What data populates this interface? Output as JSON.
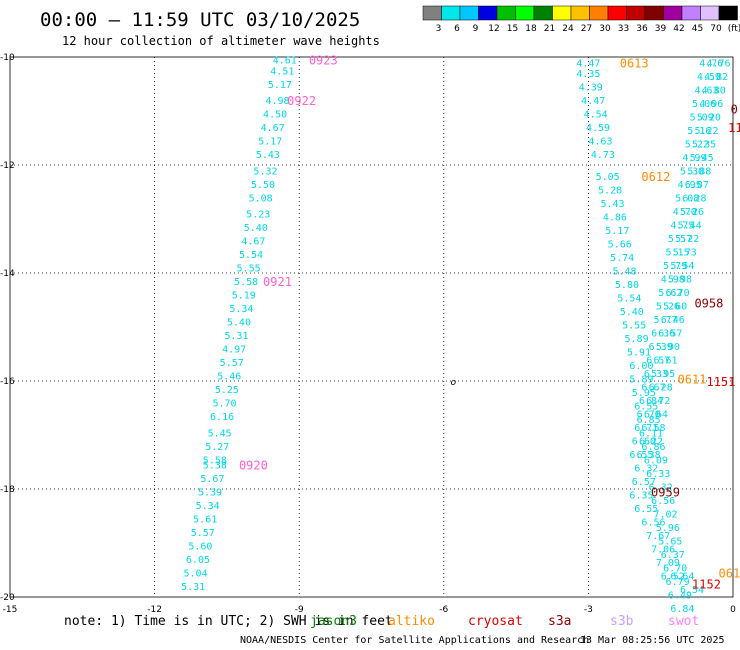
{
  "title": "00:00 – 11:59 UTC 03/10/2025",
  "subtitle": "12 hour collection of altimeter wave heights",
  "colorbar": {
    "colors": [
      "#808080",
      "#00e8e8",
      "#00c8ff",
      "#0000e0",
      "#00c000",
      "#00ff00",
      "#008000",
      "#ffff00",
      "#ffc000",
      "#ff8000",
      "#ff0000",
      "#c00000",
      "#800000",
      "#a000a0",
      "#c080ff",
      "#e0c0ff",
      "#000000"
    ],
    "labels": [
      "3",
      "6",
      "9",
      "12",
      "15",
      "18",
      "21",
      "24",
      "27",
      "30",
      "33",
      "36",
      "39",
      "42",
      "45",
      "70",
      "(ft)"
    ]
  },
  "note": "note: 1) Time is in UTC; 2) SWH is in feet",
  "legend": [
    {
      "name": "jason3",
      "color": "#008000"
    },
    {
      "name": "altiko",
      "color": "#ff8c00"
    },
    {
      "name": "cryosat",
      "color": "#e00000"
    },
    {
      "name": "s3a",
      "color": "#8b0000"
    },
    {
      "name": "s3b",
      "color": "#c8a0ff"
    },
    {
      "name": "swot",
      "color": "#ff80ff"
    }
  ],
  "credit": "NOAA/NESDIS Center for Satellite Applications and Research",
  "generated": "13 Mar 08:25:56 UTC 2025",
  "chart_data": {
    "type": "scatter",
    "xlim": [
      -15,
      0
    ],
    "ylim": [
      -20,
      -10
    ],
    "xticks": [
      -15,
      -12,
      -9,
      -6,
      -3,
      0
    ],
    "yticks": [
      -10,
      -12,
      -14,
      -16,
      -18,
      -20
    ],
    "grid": true,
    "center_marker": {
      "x": -5.8,
      "y": -16.0,
      "label": "o"
    },
    "tracks": [
      {
        "satellite": "swot",
        "color": "#ff80ff",
        "label_color": "#ff60d0",
        "points": [
          {
            "x": -9.3,
            "y": -10.05,
            "v": "4.61"
          },
          {
            "x": -9.35,
            "y": -10.25,
            "v": "4.51"
          },
          {
            "x": -9.4,
            "y": -10.5,
            "v": "5.17"
          },
          {
            "x": -9.45,
            "y": -10.8,
            "v": "4.98"
          },
          {
            "x": -9.5,
            "y": -11.05,
            "v": "4.50"
          },
          {
            "x": -9.55,
            "y": -11.3,
            "v": "4.67"
          },
          {
            "x": -9.6,
            "y": -11.55,
            "v": "5.17"
          },
          {
            "x": -9.65,
            "y": -11.8,
            "v": "5.43"
          },
          {
            "x": -9.7,
            "y": -12.1,
            "v": "5.32"
          },
          {
            "x": -9.75,
            "y": -12.35,
            "v": "5.50"
          },
          {
            "x": -9.8,
            "y": -12.6,
            "v": "5.08"
          },
          {
            "x": -9.85,
            "y": -12.9,
            "v": "5.23"
          },
          {
            "x": -9.9,
            "y": -13.15,
            "v": "5.40"
          },
          {
            "x": -9.95,
            "y": -13.4,
            "v": "4.67"
          },
          {
            "x": -10.0,
            "y": -13.65,
            "v": "5.54"
          },
          {
            "x": -10.05,
            "y": -13.9,
            "v": "5.55"
          },
          {
            "x": -10.1,
            "y": -14.15,
            "v": "5.58"
          },
          {
            "x": -10.15,
            "y": -14.4,
            "v": "5.19"
          },
          {
            "x": -10.2,
            "y": -14.65,
            "v": "5.34"
          },
          {
            "x": -10.25,
            "y": -14.9,
            "v": "5.40"
          },
          {
            "x": -10.3,
            "y": -15.15,
            "v": "5.31"
          },
          {
            "x": -10.35,
            "y": -15.4,
            "v": "4.97"
          },
          {
            "x": -10.4,
            "y": -15.65,
            "v": "5.57"
          },
          {
            "x": -10.45,
            "y": -15.9,
            "v": "5.46"
          },
          {
            "x": -10.5,
            "y": -16.15,
            "v": "5.25"
          },
          {
            "x": -10.55,
            "y": -16.4,
            "v": "5.70"
          },
          {
            "x": -10.6,
            "y": -16.65,
            "v": "6.16"
          },
          {
            "x": -10.65,
            "y": -16.95,
            "v": "5.45"
          },
          {
            "x": -10.7,
            "y": -17.2,
            "v": "5.27"
          },
          {
            "x": -10.75,
            "y": -17.45,
            "v": "5.58"
          },
          {
            "x": -10.75,
            "y": -17.55,
            "v": "5.38"
          },
          {
            "x": -10.8,
            "y": -17.8,
            "v": "5.67"
          },
          {
            "x": -10.85,
            "y": -18.05,
            "v": "5.39"
          },
          {
            "x": -10.9,
            "y": -18.3,
            "v": "5.34"
          },
          {
            "x": -10.95,
            "y": -18.55,
            "v": "5.61"
          },
          {
            "x": -11.0,
            "y": -18.8,
            "v": "5.57"
          },
          {
            "x": -11.05,
            "y": -19.05,
            "v": "5.60"
          },
          {
            "x": -11.1,
            "y": -19.3,
            "v": "6.05"
          },
          {
            "x": -11.15,
            "y": -19.55,
            "v": "5.04"
          },
          {
            "x": -11.2,
            "y": -19.8,
            "v": "5.31"
          }
        ],
        "times": [
          {
            "x": -8.8,
            "y": -10.05,
            "label": "0923"
          },
          {
            "x": -9.25,
            "y": -10.8,
            "label": "0922"
          },
          {
            "x": -9.75,
            "y": -14.15,
            "label": "0921"
          },
          {
            "x": -10.25,
            "y": -17.55,
            "label": "0920"
          }
        ]
      },
      {
        "satellite": "altiko",
        "color": "#00d8e8",
        "label_color": "#ff8c00",
        "points": [
          {
            "x": -3.0,
            "y": -10.1,
            "v": "4.47"
          },
          {
            "x": -3.0,
            "y": -10.3,
            "v": "4.35"
          },
          {
            "x": -2.95,
            "y": -10.55,
            "v": "4.39"
          },
          {
            "x": -2.9,
            "y": -10.8,
            "v": "4.47"
          },
          {
            "x": -2.85,
            "y": -11.05,
            "v": "4.54"
          },
          {
            "x": -2.8,
            "y": -11.3,
            "v": "4.59"
          },
          {
            "x": -2.75,
            "y": -11.55,
            "v": "4.63"
          },
          {
            "x": -2.7,
            "y": -11.8,
            "v": "4.73"
          },
          {
            "x": -2.6,
            "y": -12.2,
            "v": "5.05"
          },
          {
            "x": -2.55,
            "y": -12.45,
            "v": "5.28"
          },
          {
            "x": -2.5,
            "y": -12.7,
            "v": "5.43"
          },
          {
            "x": -2.45,
            "y": -12.95,
            "v": "4.86"
          },
          {
            "x": -2.4,
            "y": -13.2,
            "v": "5.17"
          },
          {
            "x": -2.35,
            "y": -13.45,
            "v": "5.66"
          },
          {
            "x": -2.3,
            "y": -13.7,
            "v": "5.74"
          },
          {
            "x": -2.25,
            "y": -13.95,
            "v": "5.48"
          },
          {
            "x": -2.2,
            "y": -14.2,
            "v": "5.80"
          },
          {
            "x": -2.15,
            "y": -14.45,
            "v": "5.54"
          },
          {
            "x": -2.1,
            "y": -14.7,
            "v": "5.40"
          },
          {
            "x": -2.05,
            "y": -14.95,
            "v": "5.55"
          },
          {
            "x": -2.0,
            "y": -15.2,
            "v": "5.89"
          },
          {
            "x": -1.95,
            "y": -15.45,
            "v": "5.91"
          },
          {
            "x": -1.9,
            "y": -15.7,
            "v": "6.00"
          },
          {
            "x": -1.9,
            "y": -15.95,
            "v": "5.89"
          },
          {
            "x": -1.85,
            "y": -16.2,
            "v": "5.95"
          },
          {
            "x": -1.8,
            "y": -16.45,
            "v": "6.55"
          },
          {
            "x": -1.75,
            "y": -16.7,
            "v": "6.85"
          },
          {
            "x": -1.7,
            "y": -16.95,
            "v": "6.11"
          },
          {
            "x": -1.65,
            "y": -17.2,
            "v": "6.86"
          },
          {
            "x": -1.6,
            "y": -17.45,
            "v": "6.09"
          },
          {
            "x": -1.55,
            "y": -17.7,
            "v": "6.33"
          },
          {
            "x": -1.5,
            "y": -17.95,
            "v": "6.32"
          },
          {
            "x": -1.45,
            "y": -18.2,
            "v": "6.56"
          },
          {
            "x": -1.4,
            "y": -18.45,
            "v": "7.02"
          },
          {
            "x": -1.35,
            "y": -18.7,
            "v": "5.96"
          },
          {
            "x": -1.3,
            "y": -18.95,
            "v": "5.65"
          },
          {
            "x": -1.25,
            "y": -19.2,
            "v": "6.37"
          },
          {
            "x": -1.2,
            "y": -19.45,
            "v": "6.70"
          },
          {
            "x": -1.15,
            "y": -19.7,
            "v": "6.79"
          },
          {
            "x": -1.1,
            "y": -19.95,
            "v": "6.49"
          },
          {
            "x": -1.05,
            "y": -20.2,
            "v": "6.84"
          }
        ],
        "times": [
          {
            "x": -2.35,
            "y": -10.1,
            "label": "0613"
          },
          {
            "x": -1.9,
            "y": -12.2,
            "label": "0612"
          },
          {
            "x": -1.15,
            "y": -15.95,
            "label": "0611"
          },
          {
            "x": -0.3,
            "y": -19.55,
            "label": "061"
          }
        ]
      },
      {
        "satellite": "s3a",
        "color": "#00d8e8",
        "label_color": "#8b0000",
        "points": [
          {
            "x": -0.45,
            "y": -10.1,
            "v": "4.76"
          },
          {
            "x": -0.5,
            "y": -10.35,
            "v": "4.59"
          },
          {
            "x": -0.55,
            "y": -10.6,
            "v": "4.63"
          },
          {
            "x": -0.6,
            "y": -10.85,
            "v": "5.06"
          },
          {
            "x": -0.65,
            "y": -11.1,
            "v": "5.09"
          },
          {
            "x": -0.7,
            "y": -11.35,
            "v": "5.16"
          },
          {
            "x": -0.75,
            "y": -11.6,
            "v": "5.22"
          },
          {
            "x": -0.8,
            "y": -11.85,
            "v": "4.99"
          },
          {
            "x": -0.85,
            "y": -12.1,
            "v": "5.30"
          },
          {
            "x": -0.9,
            "y": -12.35,
            "v": "4.95"
          },
          {
            "x": -0.95,
            "y": -12.6,
            "v": "5.08"
          },
          {
            "x": -1.0,
            "y": -12.85,
            "v": "4.70"
          },
          {
            "x": -1.05,
            "y": -13.1,
            "v": "4.75"
          },
          {
            "x": -1.1,
            "y": -13.35,
            "v": "5.57"
          },
          {
            "x": -1.15,
            "y": -13.6,
            "v": "5.15"
          },
          {
            "x": -1.2,
            "y": -13.85,
            "v": "5.79"
          },
          {
            "x": -1.25,
            "y": -14.1,
            "v": "4.98"
          },
          {
            "x": -1.3,
            "y": -14.35,
            "v": "5.62"
          },
          {
            "x": -1.35,
            "y": -14.6,
            "v": "5.26"
          },
          {
            "x": -1.4,
            "y": -14.85,
            "v": "5.77"
          },
          {
            "x": -1.45,
            "y": -15.1,
            "v": "6.36"
          },
          {
            "x": -1.5,
            "y": -15.35,
            "v": "6.39"
          },
          {
            "x": -1.55,
            "y": -15.6,
            "v": "6.57"
          },
          {
            "x": -1.6,
            "y": -15.85,
            "v": "6.33"
          },
          {
            "x": -1.65,
            "y": -16.1,
            "v": "6.67"
          },
          {
            "x": -1.7,
            "y": -16.35,
            "v": "6.84"
          },
          {
            "x": -1.75,
            "y": -16.6,
            "v": "6.70"
          },
          {
            "x": -1.8,
            "y": -16.85,
            "v": "6.71"
          },
          {
            "x": -1.85,
            "y": -17.1,
            "v": "6.60"
          },
          {
            "x": -1.9,
            "y": -17.35,
            "v": "6.55"
          }
        ],
        "times": [
          {
            "x": -0.05,
            "y": -10.95,
            "label": "0"
          },
          {
            "x": -0.8,
            "y": -14.55,
            "label": "0958"
          },
          {
            "x": -1.7,
            "y": -18.05,
            "label": "0959"
          }
        ]
      },
      {
        "satellite": "cryosat",
        "color": "#00d8e8",
        "label_color": "#e00000",
        "points": [
          {
            "x": -0.3,
            "y": -10.1,
            "v": "4.76"
          },
          {
            "x": -0.35,
            "y": -10.35,
            "v": "4.82"
          },
          {
            "x": -0.4,
            "y": -10.6,
            "v": "4.80"
          },
          {
            "x": -0.45,
            "y": -10.85,
            "v": "4.96"
          },
          {
            "x": -0.5,
            "y": -11.1,
            "v": "5.20"
          },
          {
            "x": -0.55,
            "y": -11.35,
            "v": "5.22"
          },
          {
            "x": -0.6,
            "y": -11.6,
            "v": "5.35"
          },
          {
            "x": -0.65,
            "y": -11.85,
            "v": "5.45"
          },
          {
            "x": -0.7,
            "y": -12.1,
            "v": "5.88"
          },
          {
            "x": -0.75,
            "y": -12.35,
            "v": "6.07"
          },
          {
            "x": -0.8,
            "y": -12.6,
            "v": "6.28"
          },
          {
            "x": -0.85,
            "y": -12.85,
            "v": "5.26"
          },
          {
            "x": -0.9,
            "y": -13.1,
            "v": "5.44"
          },
          {
            "x": -0.95,
            "y": -13.35,
            "v": "5.22"
          },
          {
            "x": -1.0,
            "y": -13.6,
            "v": "5.73"
          },
          {
            "x": -1.05,
            "y": -13.85,
            "v": "5.54"
          },
          {
            "x": -1.1,
            "y": -14.1,
            "v": "5.98"
          },
          {
            "x": -1.15,
            "y": -14.35,
            "v": "6.70"
          },
          {
            "x": -1.2,
            "y": -14.6,
            "v": "5.60"
          },
          {
            "x": -1.25,
            "y": -14.85,
            "v": "6.46"
          },
          {
            "x": -1.3,
            "y": -15.1,
            "v": "6.57"
          },
          {
            "x": -1.35,
            "y": -15.35,
            "v": "5.90"
          },
          {
            "x": -1.4,
            "y": -15.6,
            "v": "6.61"
          },
          {
            "x": -1.45,
            "y": -15.85,
            "v": "5.95"
          },
          {
            "x": -1.5,
            "y": -16.1,
            "v": "6.28"
          },
          {
            "x": -1.55,
            "y": -16.35,
            "v": "6.72"
          },
          {
            "x": -1.6,
            "y": -16.6,
            "v": "6.64"
          },
          {
            "x": -1.65,
            "y": -16.85,
            "v": "6.58"
          },
          {
            "x": -1.7,
            "y": -17.1,
            "v": "6.22"
          },
          {
            "x": -1.75,
            "y": -17.35,
            "v": "6.38"
          },
          {
            "x": -1.8,
            "y": -17.6,
            "v": "6.32"
          },
          {
            "x": -1.85,
            "y": -17.85,
            "v": "6.57"
          },
          {
            "x": -1.9,
            "y": -18.1,
            "v": "6.35"
          },
          {
            "x": -1.8,
            "y": -18.35,
            "v": "6.55"
          },
          {
            "x": -1.65,
            "y": -18.6,
            "v": "6.56"
          },
          {
            "x": -1.55,
            "y": -18.85,
            "v": "7.67"
          },
          {
            "x": -1.45,
            "y": -19.1,
            "v": "7.06"
          },
          {
            "x": -1.35,
            "y": -19.35,
            "v": "7.09"
          },
          {
            "x": -1.25,
            "y": -19.6,
            "v": "6.52"
          },
          {
            "x": -1.05,
            "y": -19.6,
            "v": "6.64"
          },
          {
            "x": -0.85,
            "y": -19.85,
            "v": "6.54"
          }
        ],
        "times": [
          {
            "x": -0.1,
            "y": -11.3,
            "label": "11"
          },
          {
            "x": -0.55,
            "y": -16.0,
            "label": "1151"
          },
          {
            "x": -0.85,
            "y": -19.75,
            "label": "1152"
          }
        ]
      }
    ]
  }
}
